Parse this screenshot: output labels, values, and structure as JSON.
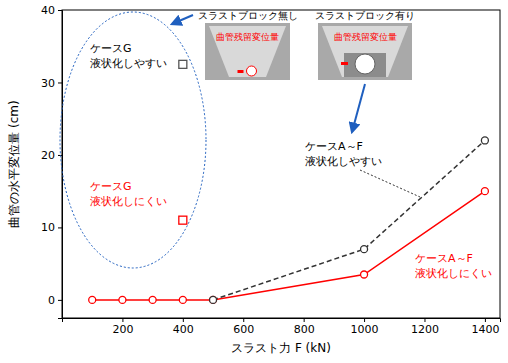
{
  "chart_data": {
    "type": "line",
    "x_label": "スラスト力 F (kN)",
    "y_label": "曲管の水平変位量 (cm)",
    "xlim": [
      0,
      1450
    ],
    "ylim": [
      -2.5,
      40
    ],
    "xticks": [
      200,
      400,
      600,
      800,
      1000,
      1200,
      1400
    ],
    "yticks": [
      0,
      10,
      20,
      30,
      40
    ],
    "grid": false,
    "annotations": [
      "スラストブロック無し",
      "曲管残留変位量",
      "スラストブロック有り",
      "曲管残留変位量"
    ],
    "series": [
      {
        "name": "ケースA～F 液状化しにくい",
        "type": "line",
        "color": "#ff0000",
        "marker": "circle",
        "line_style": "solid",
        "x": [
          100,
          200,
          300,
          400,
          500,
          1000,
          1400
        ],
        "values": [
          0,
          0,
          0,
          0,
          0,
          3.5,
          15
        ]
      },
      {
        "name": "ケースA～F 液状化しやすい",
        "type": "line",
        "color": "#333333",
        "marker": "circle",
        "line_style": "dashed",
        "x": [
          500,
          1000,
          1400
        ],
        "values": [
          0,
          7,
          22
        ]
      },
      {
        "name": "ケースG 液状化しやすい",
        "type": "scatter",
        "color": "#555555",
        "marker": "square",
        "x": [
          400
        ],
        "values": [
          32.5
        ]
      },
      {
        "name": "ケースG 液状化しにくい",
        "type": "scatter",
        "color": "#ff0000",
        "marker": "square",
        "x": [
          400
        ],
        "values": [
          11
        ]
      }
    ]
  }
}
